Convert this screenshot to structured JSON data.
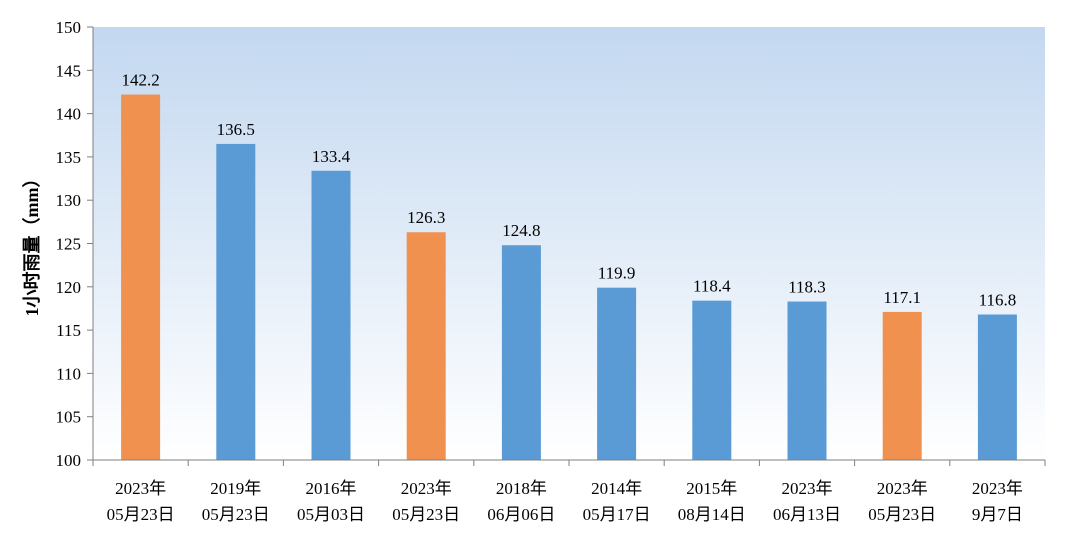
{
  "chart_data": {
    "type": "bar",
    "title": "",
    "xlabel": "",
    "ylabel": "1小时雨量（mm）",
    "ylim": [
      100,
      150
    ],
    "yticks": [
      100,
      105,
      110,
      115,
      120,
      125,
      130,
      135,
      140,
      145,
      150
    ],
    "grid": false,
    "categories": [
      {
        "line1": "2023年",
        "line2": "05月23日"
      },
      {
        "line1": "2019年",
        "line2": "05月23日"
      },
      {
        "line1": "2016年",
        "line2": "05月03日"
      },
      {
        "line1": "2023年",
        "line2": "05月23日"
      },
      {
        "line1": "2018年",
        "line2": "06月06日"
      },
      {
        "line1": "2014年",
        "line2": "05月17日"
      },
      {
        "line1": "2015年",
        "line2": "08月14日"
      },
      {
        "line1": "2023年",
        "line2": "06月13日"
      },
      {
        "line1": "2023年",
        "line2": "05月23日"
      },
      {
        "line1": "2023年",
        "line2": "9月7日"
      }
    ],
    "values": [
      142.2,
      136.5,
      133.4,
      126.3,
      124.8,
      119.9,
      118.4,
      118.3,
      117.1,
      116.8
    ],
    "data_labels": [
      "142.2",
      "136.5",
      "133.4",
      "126.3",
      "124.8",
      "119.9",
      "118.4",
      "118.3",
      "117.1",
      "116.8"
    ],
    "bar_colors": [
      "#f0914f",
      "#5b9bd5",
      "#5b9bd5",
      "#f0914f",
      "#5b9bd5",
      "#5b9bd5",
      "#5b9bd5",
      "#5b9bd5",
      "#f0914f",
      "#5b9bd5"
    ],
    "colors": {
      "highlight": "#f0914f",
      "normal": "#5b9bd5",
      "plot_gradient_top": "#c3d8f0",
      "plot_gradient_bottom": "#ffffff",
      "axis": "#7f7f7f"
    }
  }
}
